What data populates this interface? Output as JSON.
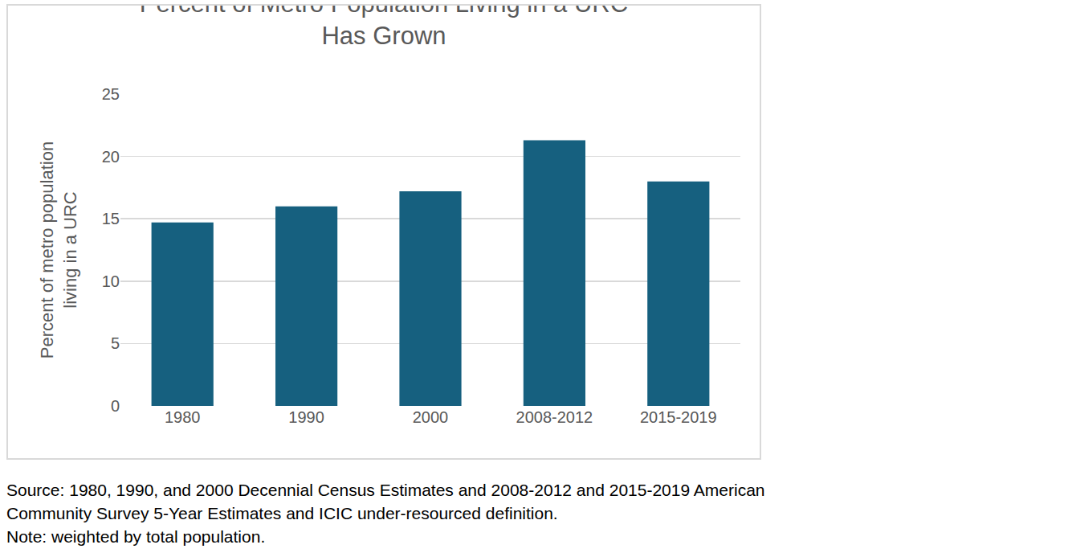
{
  "chart_data": {
    "type": "bar",
    "title": "Percent of Metro Population Living in a URC Has Grown",
    "y_label": "Percent of metro population living in a URC",
    "categories": [
      "1980",
      "1990",
      "2000",
      "2008-2012",
      "2015-2019"
    ],
    "values": [
      14.7,
      16.0,
      17.2,
      21.3,
      18.0
    ],
    "color": "#16607f",
    "ylim": [
      0,
      25
    ],
    "yticks": [
      0,
      5,
      10,
      15,
      20,
      25
    ],
    "grid": true,
    "annotations": [
      "Source: 1980, 1990, and 2000 Decennial Census Estimates and 2008-2012 and 2015-2019 American Community Survey 5-Year Estimates and ICIC under-resourced definition.",
      "Note: weighted by total population."
    ]
  }
}
